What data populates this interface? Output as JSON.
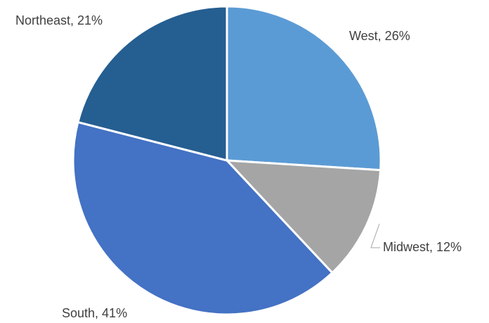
{
  "chart_data": {
    "type": "pie",
    "values": [
      26,
      12,
      41,
      21
    ],
    "value_labels": [
      "West, 26%",
      "Midwest, 12%",
      "South, 41%",
      "Northeast, 21%"
    ],
    "colors": [
      "#5b9bd5",
      "#a5a5a5",
      "#4472c4",
      "#255e91"
    ]
  }
}
